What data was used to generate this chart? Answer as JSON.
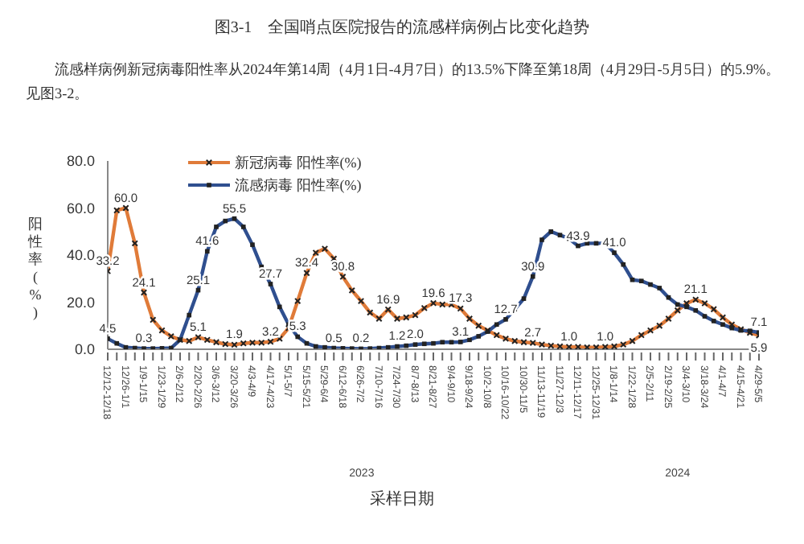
{
  "chart_data": {
    "type": "line",
    "title": "图3-1　全国哨点医院报告的流感样病例占比变化趋势",
    "subtitle": "流感样病例新冠病毒阳性率从2024年第14周（4月1日-4月7日）的13.5%下降至第18周（4月29日-5月5日）的5.9%。见图3-2。",
    "xlabel": "采样日期",
    "ylabel": "阳性率(%)",
    "categories": [
      "12/12-12/18",
      null,
      "12/26-1/1",
      null,
      "1/9-1/15",
      null,
      "1/23-1/29",
      null,
      "2/6-2/12",
      null,
      "2/20-2/26",
      null,
      "3/6-3/12",
      null,
      "3/20-3/26",
      null,
      "4/3-4/9",
      null,
      "4/17-4/23",
      null,
      "5/1-5/7",
      null,
      "5/15-5/21",
      null,
      "5/29-6/4",
      null,
      "6/12-6/18",
      null,
      "6/26-7/2",
      null,
      "7/10-7/16",
      null,
      "7/24-7/30",
      null,
      "8/7-8/13",
      null,
      "8/21-8/27",
      null,
      "9/4-9/10",
      null,
      "9/18-9/24",
      null,
      "10/2-10/8",
      null,
      "10/16-10/22",
      null,
      "10/30-11/5",
      null,
      "11/13-11/19",
      null,
      "11/27-12/3",
      null,
      "12/11-12/17",
      null,
      "12/25-12/31",
      null,
      "1/8-1/14",
      null,
      "1/22-1/28",
      null,
      "2/5-2/11",
      null,
      "2/19-2/25",
      null,
      "3/4-3/10",
      null,
      "3/18-3/24",
      null,
      "4/1-4/7",
      null,
      "4/15-4/21",
      null,
      "4/29-5/5"
    ],
    "series": [
      {
        "name": "新冠病毒 阳性率(%)",
        "color": "#e07b39",
        "marker": "cross",
        "values": [
          33.2,
          59,
          60.0,
          45,
          24.1,
          12.5,
          8,
          5.5,
          4,
          3.5,
          5.1,
          4,
          3,
          2.2,
          1.9,
          2.5,
          2.8,
          2.8,
          3.2,
          4.5,
          9,
          20.5,
          32.4,
          41,
          42.7,
          38.5,
          30.8,
          25,
          20.5,
          15.6,
          13,
          16.9,
          13,
          13.5,
          14.5,
          17.5,
          19.6,
          19,
          19,
          17.3,
          13,
          10,
          8,
          6,
          4.5,
          3.5,
          3,
          2.7,
          2,
          1.5,
          1.2,
          1.0,
          1,
          0.8,
          0.8,
          1.0,
          1.2,
          2,
          3.5,
          6,
          8,
          10,
          13,
          16.5,
          19.5,
          21.1,
          19.5,
          17,
          13.5,
          10.5,
          8.5,
          7,
          5.9
        ],
        "value_labels": [
          "33.2",
          null,
          "60.0",
          null,
          "24.1",
          null,
          null,
          null,
          null,
          null,
          "5.1",
          null,
          null,
          null,
          "1.9",
          null,
          null,
          null,
          "3.2",
          null,
          null,
          null,
          "32.4",
          null,
          null,
          null,
          "30.8",
          null,
          null,
          null,
          null,
          "16.9",
          null,
          null,
          null,
          null,
          "19.6",
          null,
          null,
          "17.3",
          null,
          null,
          null,
          null,
          null,
          null,
          null,
          "2.7",
          null,
          null,
          null,
          "1.0",
          null,
          null,
          null,
          "1.0",
          null,
          null,
          null,
          null,
          null,
          null,
          null,
          null,
          null,
          "21.1",
          null,
          null,
          null,
          null,
          null,
          null,
          "5.9"
        ]
      },
      {
        "name": "流感病毒 阳性率(%)",
        "color": "#2f4f8f",
        "marker": "square",
        "values": [
          4.5,
          2.5,
          0.8,
          0.5,
          0.3,
          0.3,
          0.4,
          0.5,
          4,
          14.5,
          25.1,
          41.6,
          52,
          54.5,
          55.5,
          52,
          44.4,
          35,
          27.7,
          18,
          10.5,
          5.3,
          2.5,
          1.2,
          0.8,
          0.5,
          0.4,
          0.3,
          0.2,
          0.3,
          0.5,
          0.8,
          1.2,
          1.5,
          2.0,
          2.3,
          2.5,
          3,
          3,
          3.1,
          4,
          5.5,
          7.5,
          10.5,
          12.7,
          17,
          21.5,
          30.9,
          46.5,
          50,
          48.5,
          47,
          43.9,
          45,
          45,
          45,
          41.0,
          36,
          29.5,
          29,
          27.5,
          26,
          22,
          19,
          18,
          16.5,
          14,
          12,
          10.5,
          9,
          8,
          7.8,
          7.1
        ],
        "value_labels": [
          "4.5",
          null,
          null,
          null,
          "0.3",
          null,
          null,
          null,
          null,
          null,
          "25.1",
          "41.6",
          null,
          null,
          "55.5",
          null,
          null,
          null,
          "27.7",
          null,
          null,
          "5.3",
          null,
          null,
          null,
          "0.5",
          null,
          null,
          "0.2",
          null,
          null,
          null,
          "1.2",
          null,
          "2.0",
          null,
          null,
          null,
          null,
          "3.1",
          null,
          null,
          null,
          null,
          "12.7",
          null,
          null,
          "30.9",
          null,
          null,
          null,
          null,
          "43.9",
          null,
          null,
          null,
          "41.0",
          null,
          null,
          null,
          null,
          null,
          null,
          null,
          null,
          null,
          null,
          null,
          null,
          null,
          null,
          null,
          "7.1"
        ]
      }
    ],
    "ylim": [
      0,
      80
    ],
    "yticks": [
      {
        "value": 0,
        "label": "0.0"
      },
      {
        "value": 20,
        "label": "20.0"
      },
      {
        "value": 40,
        "label": "40.0"
      },
      {
        "value": 60,
        "label": "60.0"
      },
      {
        "value": 80,
        "label": "80.0"
      }
    ],
    "grid": false,
    "legend": "top left",
    "annotations": [
      "2023",
      "2024"
    ]
  }
}
